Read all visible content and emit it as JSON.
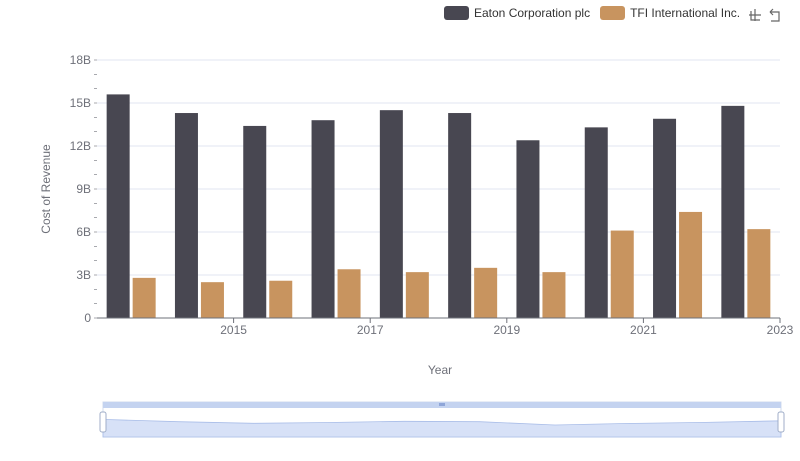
{
  "legend": {
    "items": [
      {
        "name": "Eaton Corporation plc",
        "color": "#484751"
      },
      {
        "name": "TFI International Inc.",
        "color": "#c8945f"
      }
    ]
  },
  "toolbox": {
    "zoom_icon": "zoom-icon",
    "restore_icon": "restore-icon"
  },
  "chart_data": {
    "type": "bar",
    "categories": [
      "2014",
      "2015",
      "2016",
      "2017",
      "2018",
      "2019",
      "2020",
      "2021",
      "2022",
      "2023"
    ],
    "x_tick_labels": [
      "2015",
      "2017",
      "2019",
      "2021",
      "2023"
    ],
    "series": [
      {
        "name": "Eaton Corporation plc",
        "color": "#484751",
        "values": [
          15.6,
          14.3,
          13.4,
          13.8,
          14.5,
          14.3,
          12.4,
          13.3,
          13.9,
          14.8
        ]
      },
      {
        "name": "TFI International Inc.",
        "color": "#c8945f",
        "values": [
          2.8,
          2.5,
          2.6,
          3.4,
          3.2,
          3.5,
          3.2,
          6.1,
          7.4,
          6.2
        ]
      }
    ],
    "xlabel": "Year",
    "ylabel": "Cost of Revenue",
    "ylim": [
      0,
      18
    ],
    "y_ticks": [
      0,
      3,
      6,
      9,
      12,
      15,
      18
    ],
    "y_tick_labels": [
      "0",
      "3B",
      "6B",
      "9B",
      "12B",
      "15B",
      "18B"
    ],
    "grid": true,
    "legend_position": "top-right",
    "datazoom": {
      "start": 0,
      "end": 100
    }
  }
}
